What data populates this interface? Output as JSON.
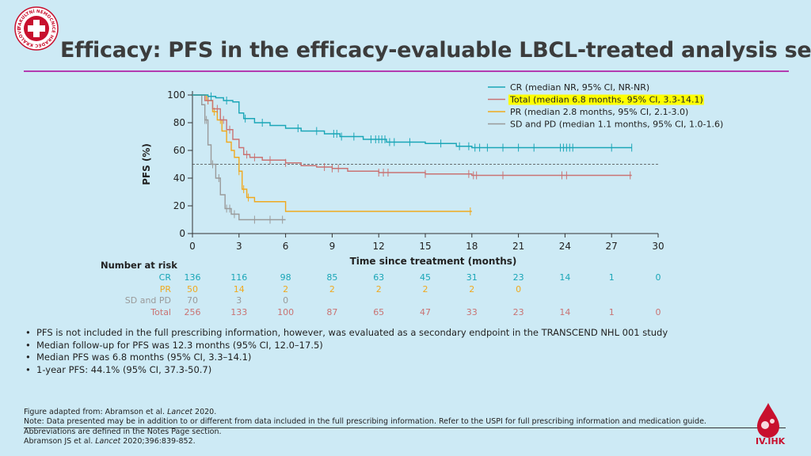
{
  "header": {
    "title": "Efficacy: PFS in the efficacy-evaluable LBCL-treated analysis set",
    "logo_text": "FAKULTNÍ NEMOCNICE HRADEC KRÁLOVÉ"
  },
  "colors": {
    "cr": "#1aa6b7",
    "total": "#c97373",
    "pr": "#f0a91f",
    "sd": "#9a9a9a",
    "accent": "#b33bb0",
    "highlight": "#ffff00"
  },
  "chart_data": {
    "type": "line",
    "subtype": "kaplan-meier",
    "xlabel": "Time since treatment (months)",
    "ylabel": "PFS (%)",
    "xlim": [
      0,
      30
    ],
    "ylim": [
      0,
      100
    ],
    "xticks": [
      0,
      3,
      6,
      9,
      12,
      15,
      18,
      21,
      24,
      27,
      30
    ],
    "yticks": [
      0,
      20,
      40,
      60,
      80,
      100
    ],
    "reference_line_y": 50,
    "legend": [
      {
        "key": "cr",
        "label": "CR (median NR, 95% CI, NR-NR)",
        "highlight": false
      },
      {
        "key": "total",
        "label": "Total (median 6.8 months, 95% CI, 3.3-14.1)",
        "highlight": true
      },
      {
        "key": "pr",
        "label": "PR (median 2.8 months, 95% CI, 2.1-3.0)",
        "highlight": false
      },
      {
        "key": "sd",
        "label": "SD and PD (median 1.1 months, 95% CI, 1.0-1.6)",
        "highlight": false
      }
    ],
    "series": [
      {
        "key": "cr",
        "name": "CR",
        "x": [
          0,
          1.0,
          1.5,
          2.0,
          2.6,
          3.0,
          3.3,
          4.0,
          5.0,
          6.0,
          7.0,
          8.5,
          9.5,
          11.0,
          12.5,
          15.0,
          17.0,
          18.0,
          28.3
        ],
        "y": [
          100,
          99,
          98,
          96,
          95,
          87,
          83,
          80,
          78,
          76,
          74,
          72,
          70,
          68,
          66,
          65,
          63,
          62,
          62
        ],
        "censor_x": [
          1.2,
          2.2,
          3.4,
          4.5,
          6.8,
          8.0,
          9.1,
          9.3,
          9.6,
          10.4,
          11.5,
          11.8,
          12.0,
          12.2,
          12.4,
          12.7,
          13.0,
          14.0,
          16.0,
          17.2,
          17.8,
          18.2,
          18.5,
          19.0,
          20.0,
          21.0,
          22.0,
          23.7,
          23.9,
          24.1,
          24.3,
          24.5,
          27.0,
          28.3
        ]
      },
      {
        "key": "total",
        "name": "Total",
        "x": [
          0,
          0.8,
          1.3,
          1.8,
          2.2,
          2.6,
          3.0,
          3.3,
          3.7,
          4.5,
          6.0,
          7.0,
          8.0,
          9.0,
          10.0,
          12.0,
          15.0,
          18.0,
          28.3
        ],
        "y": [
          100,
          96,
          90,
          82,
          75,
          68,
          62,
          57,
          55,
          53,
          51,
          49,
          48,
          47,
          45,
          44,
          43,
          42,
          42
        ],
        "censor_x": [
          1.0,
          1.6,
          2.0,
          2.4,
          3.5,
          4.0,
          5.0,
          6.0,
          8.5,
          9.0,
          9.4,
          12.0,
          12.3,
          12.6,
          15.0,
          17.8,
          18.1,
          18.3,
          20.0,
          23.8,
          24.1,
          28.2
        ]
      },
      {
        "key": "pr",
        "name": "PR",
        "x": [
          0,
          0.9,
          1.3,
          1.6,
          1.9,
          2.2,
          2.5,
          2.7,
          3.0,
          3.2,
          3.5,
          4.0,
          6.0,
          18.0
        ],
        "y": [
          100,
          96,
          88,
          82,
          74,
          66,
          60,
          55,
          45,
          32,
          26,
          23,
          16,
          16
        ],
        "censor_x": [
          1.0,
          1.4,
          1.8,
          3.0,
          3.3,
          3.6,
          17.9
        ]
      },
      {
        "key": "sd",
        "name": "SD and PD",
        "x": [
          0,
          0.6,
          0.8,
          1.0,
          1.2,
          1.5,
          1.8,
          2.1,
          2.5,
          3.0,
          6.0
        ],
        "y": [
          100,
          93,
          82,
          64,
          50,
          40,
          28,
          18,
          14,
          10,
          10
        ],
        "censor_x": [
          0.8,
          0.9,
          1.3,
          1.7,
          2.2,
          2.4,
          2.7,
          4.0,
          5.0,
          5.8
        ]
      }
    ],
    "number_at_risk": {
      "title": "Number at risk",
      "rows": [
        {
          "key": "cr",
          "label": "CR",
          "values": [
            "136",
            "116",
            "98",
            "85",
            "63",
            "45",
            "31",
            "23",
            "14",
            "1",
            "0"
          ]
        },
        {
          "key": "pr",
          "label": "PR",
          "values": [
            "50",
            "14",
            "2",
            "2",
            "2",
            "2",
            "2",
            "0"
          ]
        },
        {
          "key": "sd",
          "label": "SD and PD",
          "values": [
            "70",
            "3",
            "0"
          ]
        },
        {
          "key": "total",
          "label": "Total",
          "values": [
            "256",
            "133",
            "100",
            "87",
            "65",
            "47",
            "33",
            "23",
            "14",
            "1",
            "0"
          ]
        }
      ]
    }
  },
  "bullets": [
    "PFS is not included in the full prescribing information, however, was evaluated as a secondary endpoint in the TRANSCEND NHL 001 study",
    "Median follow-up for PFS was 12.3 months (95% CI, 12.0–17.5)",
    "Median PFS was 6.8 months (95% CI, 3.3–14.1)",
    "1-year PFS: 44.1% (95% CI, 37.3-50.7)"
  ],
  "footer": {
    "figure_prefix": "Figure adapted from: Abramson et al. ",
    "figure_journal": "Lancet",
    "figure_suffix": " 2020.",
    "note": "Note: Data presented may be in addition to or different from data included in the full prescribing information. Refer to the USPI for full prescribing information and medication guide.",
    "abbrev": "Abbreviations are defined in the Notes Page section.",
    "ref_prefix": "Abramson JS et al. ",
    "ref_journal": "Lancet",
    "ref_suffix": " 2020;396:839-852."
  },
  "brand": {
    "label": "IV.IHK"
  }
}
